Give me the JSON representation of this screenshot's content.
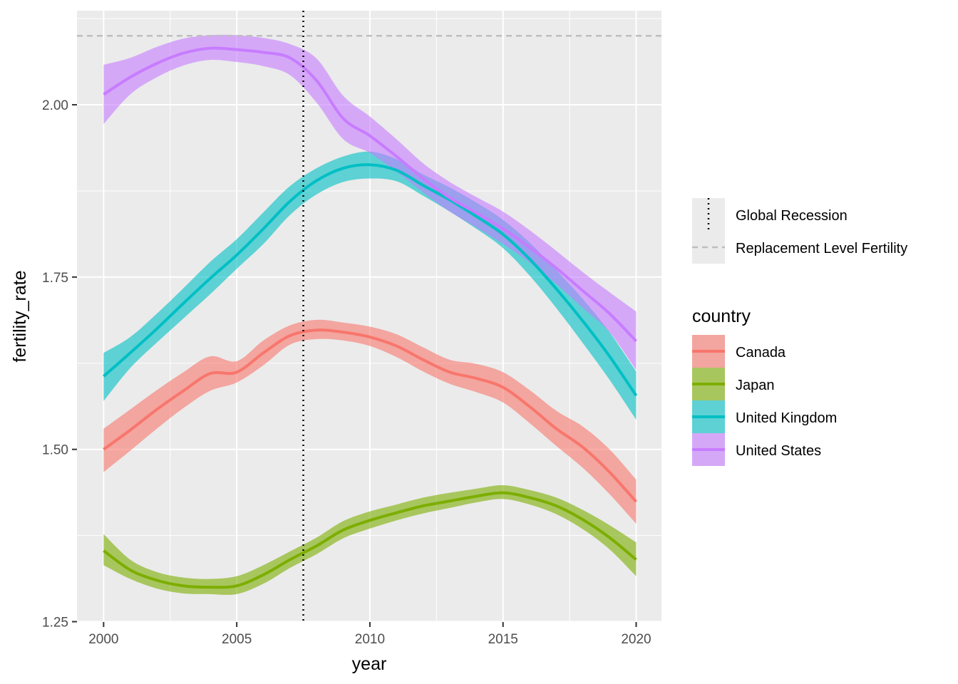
{
  "chart_data": {
    "type": "line",
    "xlabel": "year",
    "ylabel": "fertility_rate",
    "xlim": [
      1999.0,
      2020.95
    ],
    "ylim": [
      1.2495,
      2.1365
    ],
    "x_ticks": [
      2000,
      2005,
      2010,
      2015,
      2020
    ],
    "x_tick_labels": [
      "2000",
      "2005",
      "2010",
      "2015",
      "2020"
    ],
    "y_ticks": [
      1.25,
      1.5,
      1.75,
      2.0
    ],
    "y_tick_labels": [
      "1.25",
      "1.50",
      "1.75",
      "2.00"
    ],
    "grid": true,
    "legend_position": "right",
    "legend_title": "country",
    "x": [
      2000,
      2001,
      2002,
      2003,
      2004,
      2005,
      2006,
      2007,
      2008,
      2009,
      2010,
      2011,
      2012,
      2013,
      2014,
      2015,
      2016,
      2017,
      2018,
      2019,
      2020
    ],
    "series": [
      {
        "name": "Canada",
        "color": "#F8766D",
        "values": [
          1.5,
          1.528,
          1.558,
          1.585,
          1.61,
          1.612,
          1.64,
          1.665,
          1.673,
          1.67,
          1.663,
          1.65,
          1.63,
          1.612,
          1.603,
          1.59,
          1.562,
          1.53,
          1.503,
          1.467,
          1.424
        ],
        "lower": [
          1.467,
          1.498,
          1.53,
          1.56,
          1.585,
          1.597,
          1.622,
          1.652,
          1.66,
          1.658,
          1.65,
          1.634,
          1.613,
          1.595,
          1.583,
          1.568,
          1.538,
          1.505,
          1.473,
          1.435,
          1.392
        ],
        "upper": [
          1.53,
          1.558,
          1.586,
          1.612,
          1.635,
          1.628,
          1.658,
          1.68,
          1.688,
          1.684,
          1.678,
          1.667,
          1.648,
          1.63,
          1.624,
          1.612,
          1.586,
          1.556,
          1.533,
          1.5,
          1.456
        ]
      },
      {
        "name": "Japan",
        "color": "#7CAE00",
        "values": [
          1.353,
          1.325,
          1.31,
          1.302,
          1.3,
          1.302,
          1.318,
          1.34,
          1.36,
          1.383,
          1.397,
          1.408,
          1.418,
          1.425,
          1.432,
          1.437,
          1.43,
          1.418,
          1.398,
          1.372,
          1.34
        ],
        "lower": [
          1.332,
          1.312,
          1.298,
          1.291,
          1.29,
          1.29,
          1.305,
          1.328,
          1.348,
          1.371,
          1.385,
          1.397,
          1.407,
          1.415,
          1.423,
          1.428,
          1.42,
          1.406,
          1.384,
          1.355,
          1.316
        ],
        "upper": [
          1.377,
          1.34,
          1.322,
          1.314,
          1.312,
          1.316,
          1.332,
          1.352,
          1.372,
          1.396,
          1.41,
          1.42,
          1.43,
          1.437,
          1.443,
          1.448,
          1.441,
          1.43,
          1.412,
          1.39,
          1.365
        ]
      },
      {
        "name": "United Kingdom",
        "color": "#00BFC4",
        "values": [
          1.606,
          1.64,
          1.675,
          1.712,
          1.748,
          1.782,
          1.82,
          1.86,
          1.89,
          1.908,
          1.913,
          1.905,
          1.883,
          1.862,
          1.838,
          1.812,
          1.776,
          1.733,
          1.686,
          1.635,
          1.578
        ],
        "lower": [
          1.57,
          1.618,
          1.655,
          1.69,
          1.725,
          1.762,
          1.798,
          1.84,
          1.87,
          1.888,
          1.893,
          1.889,
          1.868,
          1.845,
          1.82,
          1.792,
          1.752,
          1.705,
          1.654,
          1.601,
          1.543
        ],
        "upper": [
          1.64,
          1.663,
          1.697,
          1.734,
          1.772,
          1.805,
          1.844,
          1.882,
          1.908,
          1.925,
          1.932,
          1.921,
          1.899,
          1.88,
          1.858,
          1.833,
          1.8,
          1.76,
          1.718,
          1.67,
          1.613
        ]
      },
      {
        "name": "United States",
        "color": "#C77CFF",
        "values": [
          2.015,
          2.04,
          2.06,
          2.075,
          2.082,
          2.08,
          2.076,
          2.068,
          2.035,
          1.98,
          1.955,
          1.925,
          1.893,
          1.865,
          1.843,
          1.82,
          1.793,
          1.763,
          1.73,
          1.697,
          1.657
        ],
        "lower": [
          1.972,
          2.015,
          2.04,
          2.057,
          2.065,
          2.062,
          2.056,
          2.043,
          2.003,
          1.95,
          1.93,
          1.903,
          1.873,
          1.845,
          1.822,
          1.798,
          1.771,
          1.74,
          1.705,
          1.67,
          1.615
        ],
        "upper": [
          2.058,
          2.068,
          2.084,
          2.096,
          2.101,
          2.101,
          2.097,
          2.088,
          2.067,
          2.013,
          1.983,
          1.95,
          1.915,
          1.888,
          1.866,
          1.845,
          1.818,
          1.788,
          1.757,
          1.728,
          1.7
        ]
      }
    ],
    "reference_lines": [
      {
        "name": "Global Recession",
        "orientation": "vertical",
        "value": 2007.5,
        "linetype": "dotted",
        "color": "#000000"
      },
      {
        "name": "Replacement Level Fertility",
        "orientation": "horizontal",
        "value": 2.1,
        "linetype": "dashed",
        "color": "#BEBEBE"
      }
    ]
  }
}
